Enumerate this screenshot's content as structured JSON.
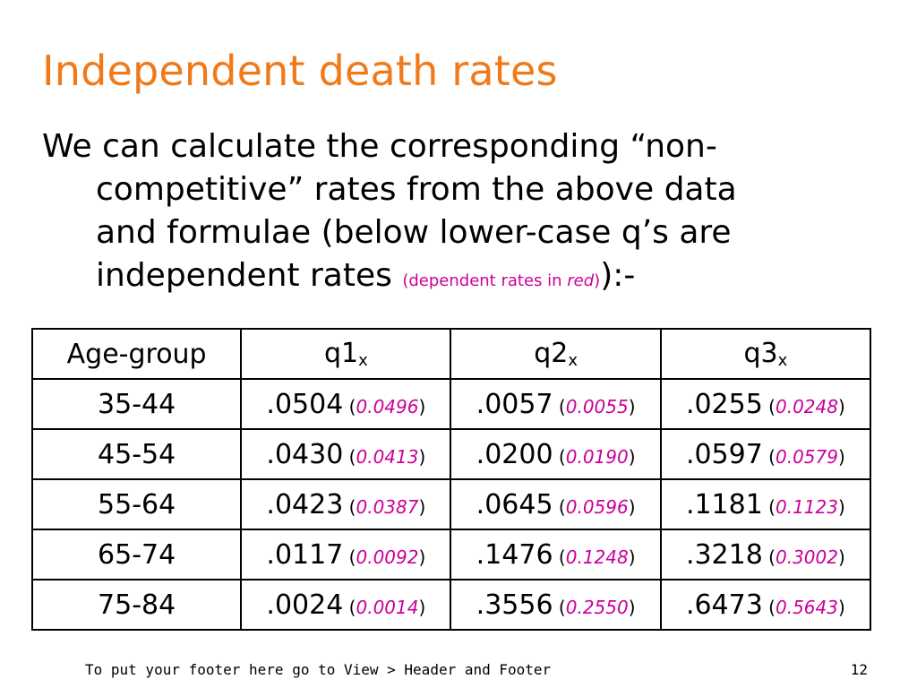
{
  "title": "Independent death rates",
  "body": {
    "line1": "We can calculate the corresponding “non-",
    "line2": "competitive” rates from the above data",
    "line3": "and formulae (below lower-case q’s are",
    "line4": "independent rates ",
    "note_open": "(dependent rates in ",
    "note_red": "red",
    "note_close": ")",
    "line4_end": "):-"
  },
  "table": {
    "headers": [
      {
        "label": "Age-group",
        "sub": ""
      },
      {
        "label": "q1",
        "sub": "x"
      },
      {
        "label": "q2",
        "sub": "x"
      },
      {
        "label": "q3",
        "sub": "x"
      }
    ],
    "rows": [
      {
        "age": "35-44",
        "q1": ".0504",
        "q1_dep": "0.0496",
        "q2": ".0057",
        "q2_dep": "0.0055",
        "q3": ".0255",
        "q3_dep": "0.0248"
      },
      {
        "age": "45-54",
        "q1": ".0430",
        "q1_dep": "0.0413",
        "q2": ".0200",
        "q2_dep": "0.0190",
        "q3": ".0597",
        "q3_dep": "0.0579"
      },
      {
        "age": "55-64",
        "q1": ".0423",
        "q1_dep": "0.0387",
        "q2": ".0645",
        "q2_dep": "0.0596",
        "q3": ".1181",
        "q3_dep": "0.1123"
      },
      {
        "age": "65-74",
        "q1": ".0117",
        "q1_dep": "0.0092",
        "q2": ".1476",
        "q2_dep": "0.1248",
        "q3": ".3218",
        "q3_dep": "0.3002"
      },
      {
        "age": "75-84",
        "q1": ".0024",
        "q1_dep": "0.0014",
        "q2": ".3556",
        "q2_dep": "0.2550",
        "q3": ".6473",
        "q3_dep": "0.5643"
      }
    ]
  },
  "footer": {
    "text": "To put your footer here go to View > Header and Footer",
    "page_number": "12"
  },
  "colors": {
    "title": "#f07a1a",
    "dependent": "#cc0099"
  }
}
